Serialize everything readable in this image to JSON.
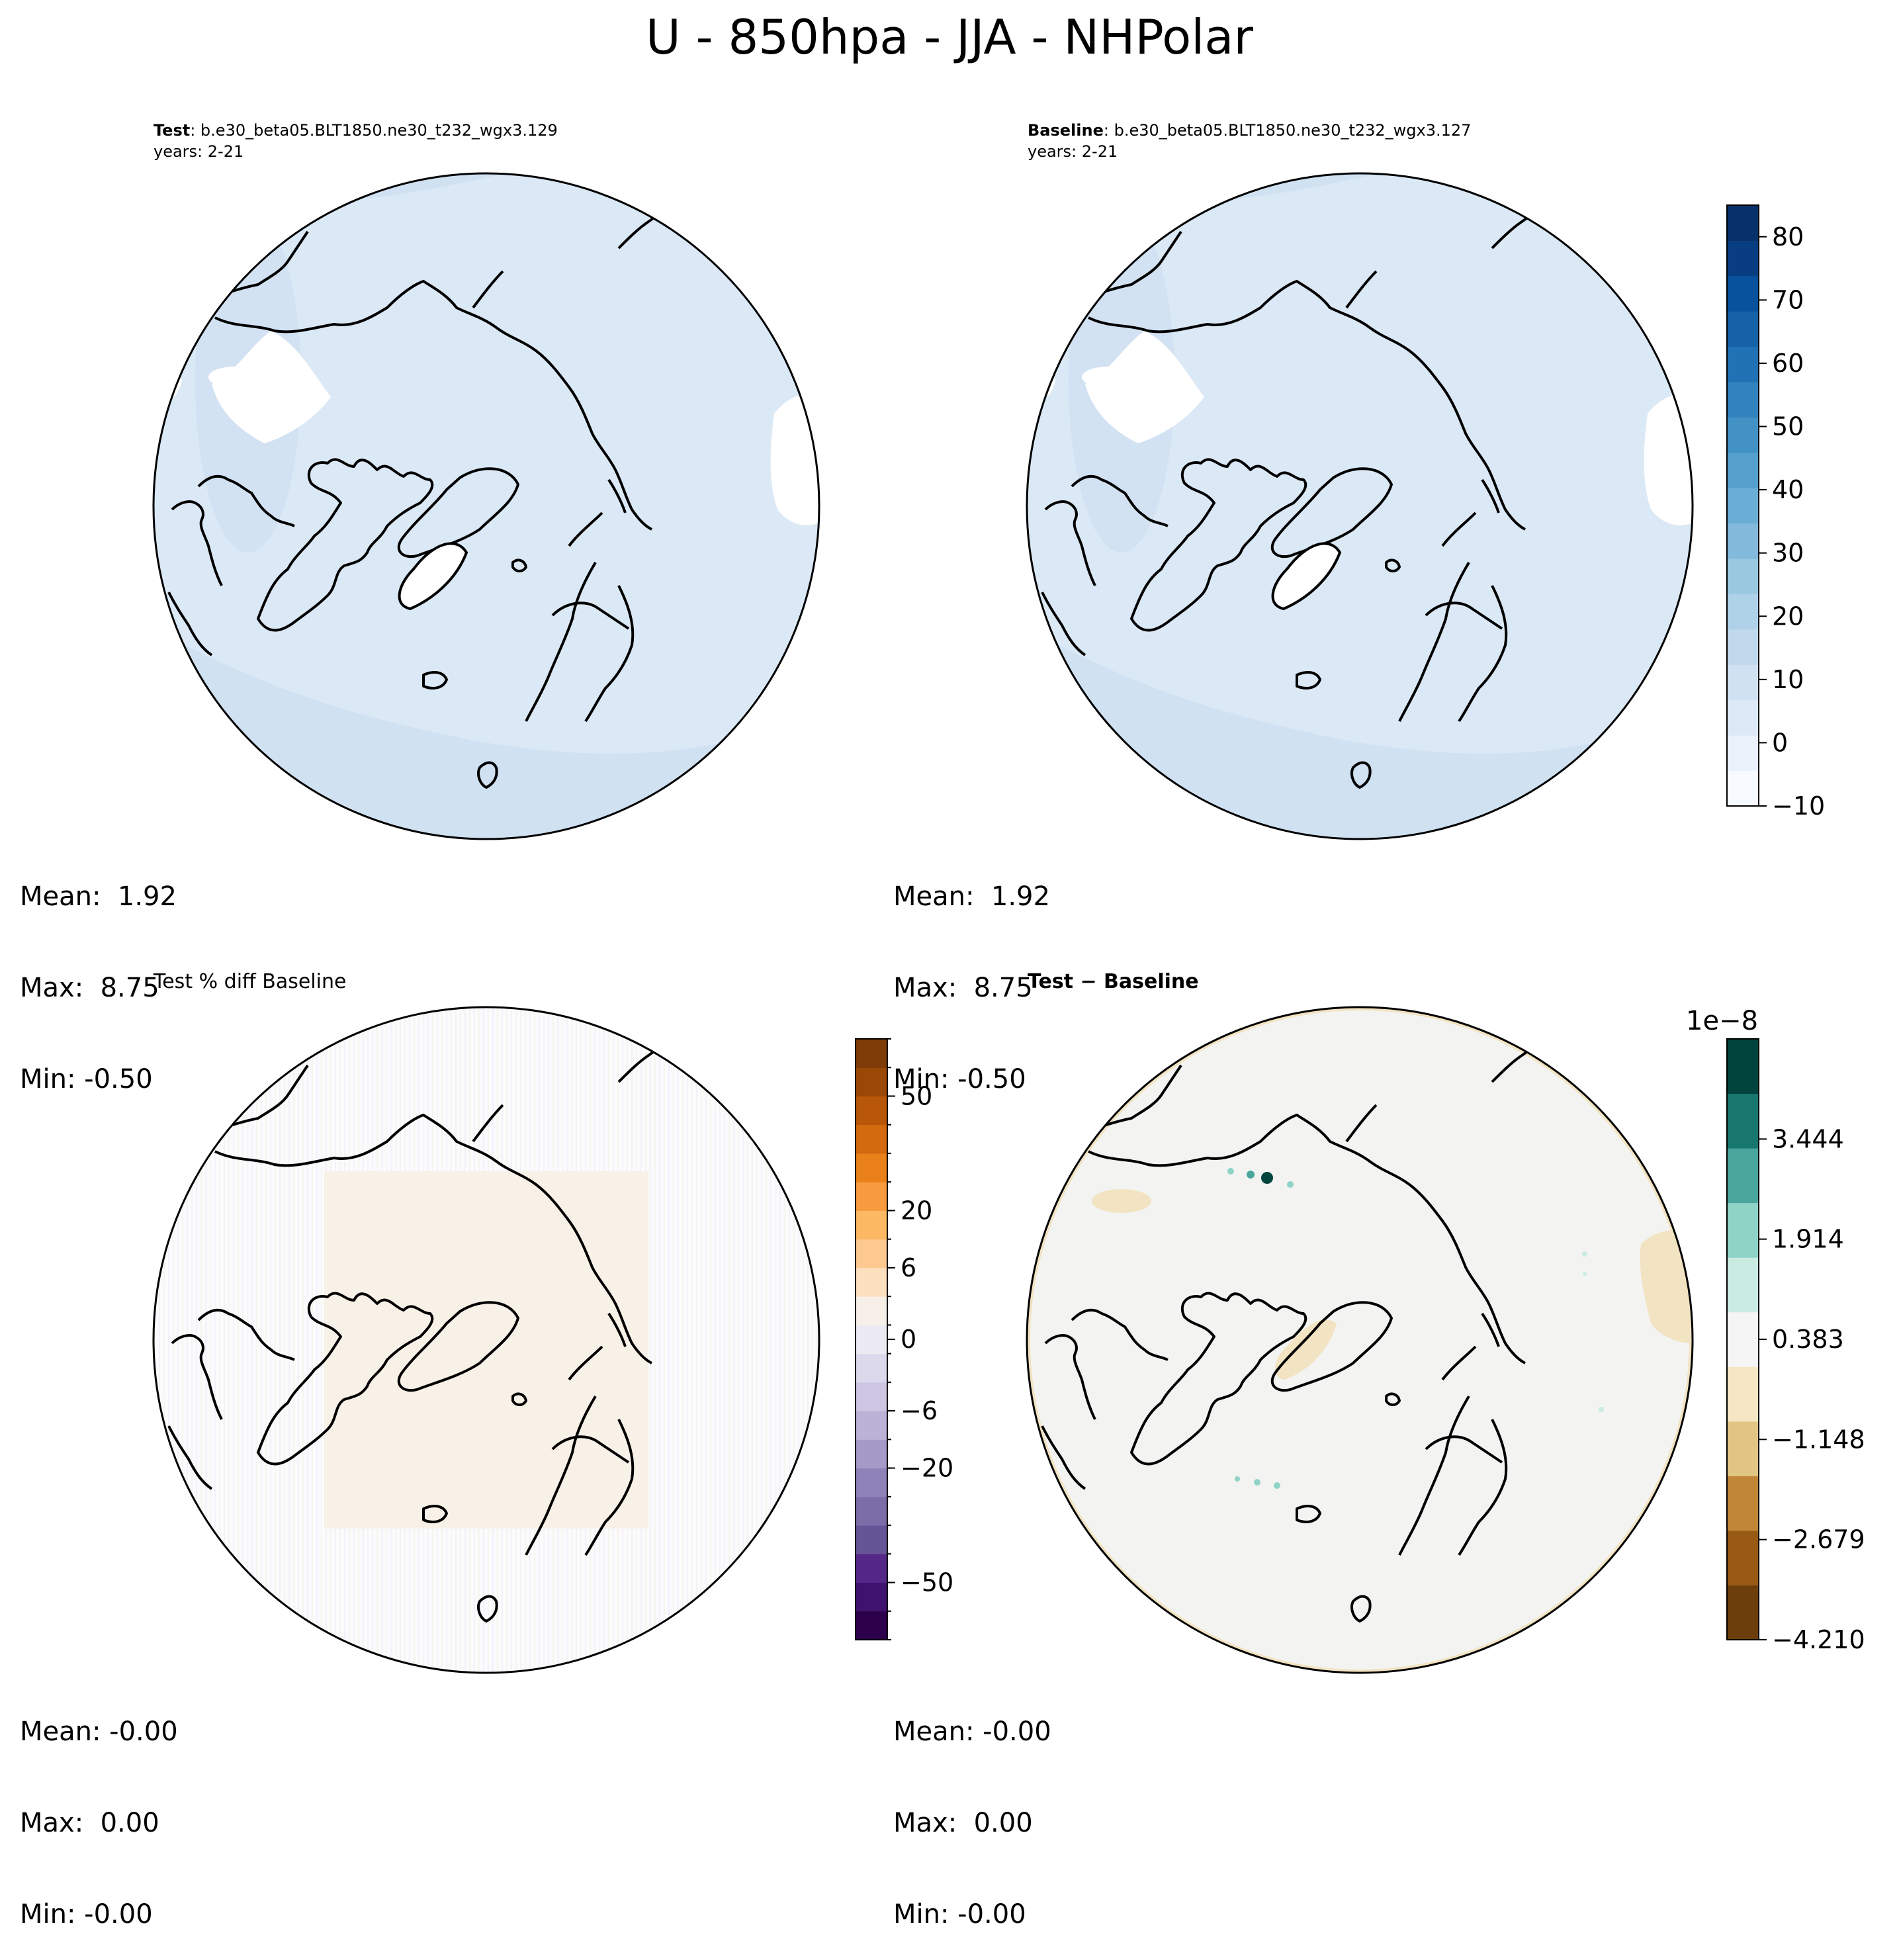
{
  "figure": {
    "title": "U - 850hpa - JJA - NHPolar"
  },
  "panels": [
    {
      "id": "test",
      "title_bold": "Test",
      "title_rest": ": b.e30_beta05.BLT1850.ne30_t232_wgx3.129",
      "subtitle": "years: 2-21",
      "stats": {
        "mean": "Mean:  1.92",
        "max": "Max:  8.75",
        "min": "Min: -0.50"
      }
    },
    {
      "id": "baseline",
      "title_bold": "Baseline",
      "title_rest": ": b.e30_beta05.BLT1850.ne30_t232_wgx3.127",
      "subtitle": "years: 2-21",
      "stats": {
        "mean": "Mean:  1.92",
        "max": "Max:  8.75",
        "min": "Min: -0.50"
      }
    },
    {
      "id": "pct-diff",
      "title_plain": "Test % diff Baseline",
      "stats": {
        "mean": "Mean: -0.00",
        "max": "Max:  0.00",
        "min": "Min: -0.00"
      }
    },
    {
      "id": "diff",
      "title_bold": "Test − Baseline",
      "stats": {
        "mean": "Mean: -0.00",
        "max": "Max:  0.00",
        "min": "Min: -0.00"
      }
    }
  ],
  "colorbars": {
    "main": {
      "ticks": [
        "−10",
        "0",
        "10",
        "20",
        "30",
        "40",
        "50",
        "60",
        "70",
        "80"
      ],
      "colors": [
        "#f7fbff",
        "#eaf2fb",
        "#dde9f6",
        "#d0e1f2",
        "#c1d9ed",
        "#b0d2e8",
        "#9ac8e0",
        "#83badb",
        "#6aaed6",
        "#56a0ce",
        "#4292c6",
        "#3282be",
        "#2171b5",
        "#1562a9",
        "#08519c",
        "#083e81",
        "#08306b"
      ]
    },
    "pct": {
      "ticks": [
        "−50",
        "−20",
        "−6",
        "0",
        "6",
        "20",
        "50"
      ],
      "colors": [
        "#2d004b",
        "#3f1270",
        "#542788",
        "#665596",
        "#7c6ca8",
        "#8f82b9",
        "#a59bc8",
        "#bab2d7",
        "#ccc6e2",
        "#dcd9ec",
        "#ecebf3",
        "#f7f0e8",
        "#fde0c0",
        "#fdc990",
        "#fdb864",
        "#f89b3e",
        "#e9801a",
        "#d36a0f",
        "#b85707",
        "#9b4806",
        "#7f3b08"
      ]
    },
    "diff": {
      "exponent": "1e−8",
      "ticks": [
        "−4.210",
        "−2.679",
        "−1.148",
        "0.383",
        "1.914",
        "3.444"
      ],
      "colors": [
        "#6c3e0b",
        "#995a16",
        "#c18737",
        "#e1c683",
        "#f5e7c4",
        "#f5f5f5",
        "#c9ebe2",
        "#8fd3c7",
        "#4aa69c",
        "#17776e",
        "#01443d"
      ]
    }
  },
  "colors": {
    "map_background": "#dbe8f5",
    "map_band": "#d0e1f2",
    "coast": "#000000"
  }
}
